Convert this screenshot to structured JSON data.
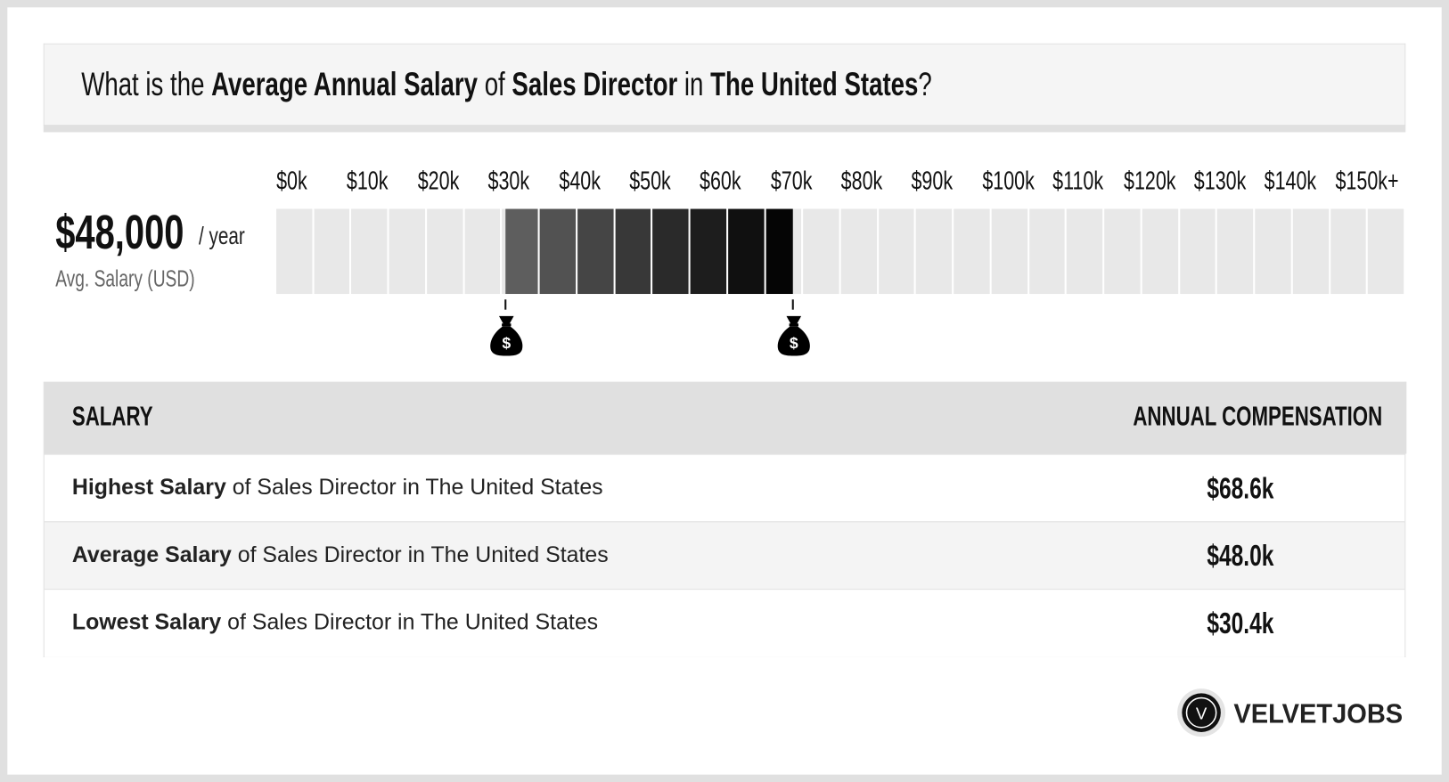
{
  "question": {
    "prefix": "What is the ",
    "metric": "Average Annual Salary",
    "of": " of ",
    "job": "Sales Director",
    "in": " in ",
    "location": "The United States",
    "suffix": "?"
  },
  "summary": {
    "amount": "$48,000",
    "period": "/ year",
    "label": "Avg. Salary (USD)"
  },
  "range_chart": {
    "axis_labels": [
      "$0k",
      "$10k",
      "$20k",
      "$30k",
      "$40k",
      "$50k",
      "$60k",
      "$70k",
      "$80k",
      "$90k",
      "$100k",
      "$110k",
      "$120k",
      "$130k",
      "$140k",
      "$150k+"
    ],
    "axis_max_k": 150,
    "segment_step_k": 5,
    "low_k": 30.4,
    "high_k": 68.6,
    "colors": {
      "empty": "#e8e8e8",
      "start": "#646464",
      "end": "#000000"
    },
    "marker_icon": "money-bag-icon"
  },
  "table": {
    "headers": [
      "SALARY",
      "ANNUAL COMPENSATION"
    ],
    "rows": [
      {
        "bold": "Highest Salary",
        "rest": " of Sales Director in The United States",
        "value": "$68.6k"
      },
      {
        "bold": "Average Salary",
        "rest": " of Sales Director in The United States",
        "value": "$48.0k"
      },
      {
        "bold": "Lowest Salary",
        "rest": " of Sales Director in The United States",
        "value": "$30.4k"
      }
    ]
  },
  "brand": {
    "name": "VELVETJOBS",
    "mark": "V"
  }
}
